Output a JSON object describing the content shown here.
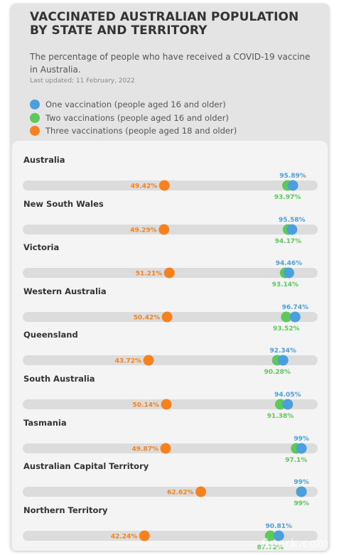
{
  "header": {
    "title": "VACCINATED AUSTRALIAN POPULATION BY STATE AND TERRITORY",
    "subtitle": "The percentage of people who have received a COVID-19 vaccine in Australia.",
    "updated": "Last updated: 11 February, 2022"
  },
  "watermark": "6park.com",
  "colors": {
    "one": "#4b9fdc",
    "two": "#5cc95a",
    "three": "#f5821f",
    "track": "#dcdcdc"
  },
  "chart_data": {
    "type": "dot-plot",
    "title": "VACCINATED AUSTRALIAN POPULATION BY STATE AND TERRITORY",
    "xlim": [
      0,
      100
    ],
    "unit": "%",
    "series": [
      {
        "key": "one",
        "name": "One vaccination (people aged 16 and older)"
      },
      {
        "key": "two",
        "name": "Two vaccinations (people aged 16 and older)"
      },
      {
        "key": "three",
        "name": "Three vaccinations (people aged 18 and older)"
      }
    ],
    "rows": [
      {
        "name": "Australia",
        "one": 95.89,
        "two": 93.97,
        "three": 49.42,
        "one_label": "95.89%",
        "two_label": "93.97%",
        "three_label": "49.42%"
      },
      {
        "name": "New South Wales",
        "one": 95.58,
        "two": 94.17,
        "three": 49.29,
        "one_label": "95.58%",
        "two_label": "94.17%",
        "three_label": "49.29%"
      },
      {
        "name": "Victoria",
        "one": 94.46,
        "two": 93.14,
        "three": 51.21,
        "one_label": "94.46%",
        "two_label": "93.14%",
        "three_label": "51.21%"
      },
      {
        "name": "Western Australia",
        "one": 96.74,
        "two": 93.52,
        "three": 50.42,
        "one_label": "96.74%",
        "two_label": "93.52%",
        "three_label": "50.42%"
      },
      {
        "name": "Queensland",
        "one": 92.34,
        "two": 90.28,
        "three": 43.72,
        "one_label": "92.34%",
        "two_label": "90.28%",
        "three_label": "43.72%"
      },
      {
        "name": "South Australia",
        "one": 94.05,
        "two": 91.38,
        "three": 50.14,
        "one_label": "94.05%",
        "two_label": "91.38%",
        "three_label": "50.14%"
      },
      {
        "name": "Tasmania",
        "one": 99,
        "two": 97.1,
        "three": 49.87,
        "one_label": "99%",
        "two_label": "97.1%",
        "three_label": "49.87%"
      },
      {
        "name": "Australian Capital Territory",
        "one": 99,
        "two": 99,
        "three": 62.62,
        "one_label": "99%",
        "two_label": "99%",
        "three_label": "62.62%"
      },
      {
        "name": "Northern Territory",
        "one": 90.81,
        "two": 87.72,
        "three": 42.24,
        "one_label": "90.81%",
        "two_label": "87.72%",
        "three_label": "42.24%"
      }
    ]
  }
}
